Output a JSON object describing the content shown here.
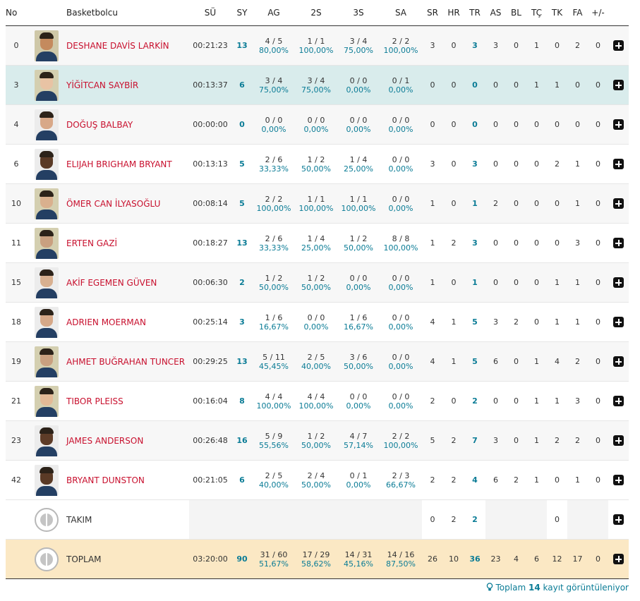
{
  "columns": {
    "no": "No",
    "player": "Basketbolcu",
    "min": "SÜ",
    "pts": "SY",
    "fg": "AG",
    "fg2": "2S",
    "fg3": "3S",
    "ft": "SA",
    "dreb": "SR",
    "oreb": "HR",
    "treb": "TR",
    "ast": "AS",
    "blk": "BL",
    "tov": "TÇ",
    "stl": "TK",
    "pf": "FA",
    "pm": "+/-"
  },
  "players": [
    {
      "no": "0",
      "name": "DESHANE DAVİS LARKİN",
      "min": "00:21:23",
      "pts": "13",
      "fg": "4 / 5",
      "fg_pct": "80,00%",
      "fg2": "1 / 1",
      "fg2_pct": "100,00%",
      "fg3": "3 / 4",
      "fg3_pct": "75,00%",
      "ft": "2 / 2",
      "ft_pct": "100,00%",
      "dreb": "3",
      "oreb": "0",
      "treb": "3",
      "ast": "3",
      "blk": "0",
      "tov": "1",
      "stl": "0",
      "pf": "2",
      "pm": "0",
      "skin": "#c48a5e",
      "bg": "#cfc8a8"
    },
    {
      "no": "3",
      "name": "YİĞİTCAN SAYBİR",
      "min": "00:13:37",
      "pts": "6",
      "fg": "3 / 4",
      "fg_pct": "75,00%",
      "fg2": "3 / 4",
      "fg2_pct": "75,00%",
      "fg3": "0 / 0",
      "fg3_pct": "0,00%",
      "ft": "0 / 1",
      "ft_pct": "0,00%",
      "dreb": "0",
      "oreb": "0",
      "treb": "0",
      "ast": "0",
      "blk": "0",
      "tov": "1",
      "stl": "1",
      "pf": "0",
      "pm": "0",
      "skin": "#e8c3a4",
      "bg": "#d4cfb0"
    },
    {
      "no": "4",
      "name": "DOĞUŞ BALBAY",
      "min": "00:00:00",
      "pts": "0",
      "fg": "0 / 0",
      "fg_pct": "0,00%",
      "fg2": "0 / 0",
      "fg2_pct": "0,00%",
      "fg3": "0 / 0",
      "fg3_pct": "0,00%",
      "ft": "0 / 0",
      "ft_pct": "0,00%",
      "dreb": "0",
      "oreb": "0",
      "treb": "0",
      "ast": "0",
      "blk": "0",
      "tov": "0",
      "stl": "0",
      "pf": "0",
      "pm": "0",
      "skin": "#d8a888",
      "bg": "#ececec"
    },
    {
      "no": "6",
      "name": "ELIJAH BRIGHAM BRYANT",
      "min": "00:13:13",
      "pts": "5",
      "fg": "2 / 6",
      "fg_pct": "33,33%",
      "fg2": "1 / 2",
      "fg2_pct": "50,00%",
      "fg3": "1 / 4",
      "fg3_pct": "25,00%",
      "ft": "0 / 0",
      "ft_pct": "0,00%",
      "dreb": "3",
      "oreb": "0",
      "treb": "3",
      "ast": "0",
      "blk": "0",
      "tov": "0",
      "stl": "2",
      "pf": "1",
      "pm": "0",
      "skin": "#5a3a26",
      "bg": "#ececec"
    },
    {
      "no": "10",
      "name": "ÖMER CAN İLYASOĞLU",
      "min": "00:08:14",
      "pts": "5",
      "fg": "2 / 2",
      "fg_pct": "100,00%",
      "fg2": "1 / 1",
      "fg2_pct": "100,00%",
      "fg3": "1 / 1",
      "fg3_pct": "100,00%",
      "ft": "0 / 0",
      "ft_pct": "0,00%",
      "dreb": "1",
      "oreb": "0",
      "treb": "1",
      "ast": "2",
      "blk": "0",
      "tov": "0",
      "stl": "0",
      "pf": "1",
      "pm": "0",
      "skin": "#d9b08e",
      "bg": "#d4cfb0"
    },
    {
      "no": "11",
      "name": "ERTEN GAZİ",
      "min": "00:18:27",
      "pts": "13",
      "fg": "2 / 6",
      "fg_pct": "33,33%",
      "fg2": "1 / 4",
      "fg2_pct": "25,00%",
      "fg3": "1 / 2",
      "fg3_pct": "50,00%",
      "ft": "8 / 8",
      "ft_pct": "100,00%",
      "dreb": "1",
      "oreb": "2",
      "treb": "3",
      "ast": "0",
      "blk": "0",
      "tov": "0",
      "stl": "0",
      "pf": "3",
      "pm": "0",
      "skin": "#c9a080",
      "bg": "#d4cfb0"
    },
    {
      "no": "15",
      "name": "AKİF EGEMEN GÜVEN",
      "min": "00:06:30",
      "pts": "2",
      "fg": "1 / 2",
      "fg_pct": "50,00%",
      "fg2": "1 / 2",
      "fg2_pct": "50,00%",
      "fg3": "0 / 0",
      "fg3_pct": "0,00%",
      "ft": "0 / 0",
      "ft_pct": "0,00%",
      "dreb": "1",
      "oreb": "0",
      "treb": "1",
      "ast": "0",
      "blk": "0",
      "tov": "0",
      "stl": "1",
      "pf": "1",
      "pm": "0",
      "skin": "#d8b090",
      "bg": "#ececec"
    },
    {
      "no": "18",
      "name": "ADRIEN MOERMAN",
      "min": "00:25:14",
      "pts": "3",
      "fg": "1 / 6",
      "fg_pct": "16,67%",
      "fg2": "0 / 0",
      "fg2_pct": "0,00%",
      "fg3": "1 / 6",
      "fg3_pct": "16,67%",
      "ft": "0 / 0",
      "ft_pct": "0,00%",
      "dreb": "4",
      "oreb": "1",
      "treb": "5",
      "ast": "3",
      "blk": "2",
      "tov": "0",
      "stl": "1",
      "pf": "1",
      "pm": "0",
      "skin": "#d6a888",
      "bg": "#ececec"
    },
    {
      "no": "19",
      "name": "AHMET BUĞRAHAN TUNCER",
      "min": "00:29:25",
      "pts": "13",
      "fg": "5 / 11",
      "fg_pct": "45,45%",
      "fg2": "2 / 5",
      "fg2_pct": "40,00%",
      "fg3": "3 / 6",
      "fg3_pct": "50,00%",
      "ft": "0 / 0",
      "ft_pct": "0,00%",
      "dreb": "4",
      "oreb": "1",
      "treb": "5",
      "ast": "6",
      "blk": "0",
      "tov": "1",
      "stl": "4",
      "pf": "2",
      "pm": "0",
      "skin": "#c9a080",
      "bg": "#d4cfb0"
    },
    {
      "no": "21",
      "name": "TIBOR PLEISS",
      "min": "00:16:04",
      "pts": "8",
      "fg": "4 / 4",
      "fg_pct": "100,00%",
      "fg2": "4 / 4",
      "fg2_pct": "100,00%",
      "fg3": "0 / 0",
      "fg3_pct": "0,00%",
      "ft": "0 / 0",
      "ft_pct": "0,00%",
      "dreb": "2",
      "oreb": "0",
      "treb": "2",
      "ast": "0",
      "blk": "0",
      "tov": "1",
      "stl": "1",
      "pf": "3",
      "pm": "0",
      "skin": "#e3b996",
      "bg": "#d4cfb0"
    },
    {
      "no": "23",
      "name": "JAMES ANDERSON",
      "min": "00:26:48",
      "pts": "16",
      "fg": "5 / 9",
      "fg_pct": "55,56%",
      "fg2": "1 / 2",
      "fg2_pct": "50,00%",
      "fg3": "4 / 7",
      "fg3_pct": "57,14%",
      "ft": "2 / 2",
      "ft_pct": "100,00%",
      "dreb": "5",
      "oreb": "2",
      "treb": "7",
      "ast": "3",
      "blk": "0",
      "tov": "1",
      "stl": "2",
      "pf": "2",
      "pm": "0",
      "skin": "#5e3c28",
      "bg": "#ececec"
    },
    {
      "no": "42",
      "name": "BRYANT DUNSTON",
      "min": "00:21:05",
      "pts": "6",
      "fg": "2 / 5",
      "fg_pct": "40,00%",
      "fg2": "2 / 4",
      "fg2_pct": "50,00%",
      "fg3": "0 / 1",
      "fg3_pct": "0,00%",
      "ft": "2 / 3",
      "ft_pct": "66,67%",
      "dreb": "2",
      "oreb": "2",
      "treb": "4",
      "ast": "6",
      "blk": "2",
      "tov": "1",
      "stl": "0",
      "pf": "1",
      "pm": "0",
      "skin": "#5a3a26",
      "bg": "#ececec"
    }
  ],
  "team": {
    "name": "TAKIM",
    "dreb": "0",
    "oreb": "2",
    "treb": "2",
    "stl": "0"
  },
  "total": {
    "name": "TOPLAM",
    "min": "03:20:00",
    "pts": "90",
    "fg": "31 / 60",
    "fg_pct": "51,67%",
    "fg2": "17 / 29",
    "fg2_pct": "58,62%",
    "fg3": "14 / 31",
    "fg3_pct": "45,16%",
    "ft": "14 / 16",
    "ft_pct": "87,50%",
    "dreb": "26",
    "oreb": "10",
    "treb": "36",
    "ast": "23",
    "blk": "4",
    "tov": "6",
    "stl": "12",
    "pf": "17",
    "pm": "0"
  },
  "footer": {
    "prefix": "Toplam",
    "count": "14",
    "suffix": "kayıt görüntüleniyor",
    "icon": "lightbulb-icon"
  },
  "colors": {
    "accent": "#0b7c96",
    "name": "#c8102e",
    "highlight_row": "#d9ecec",
    "total_row": "#fbe8c4"
  }
}
